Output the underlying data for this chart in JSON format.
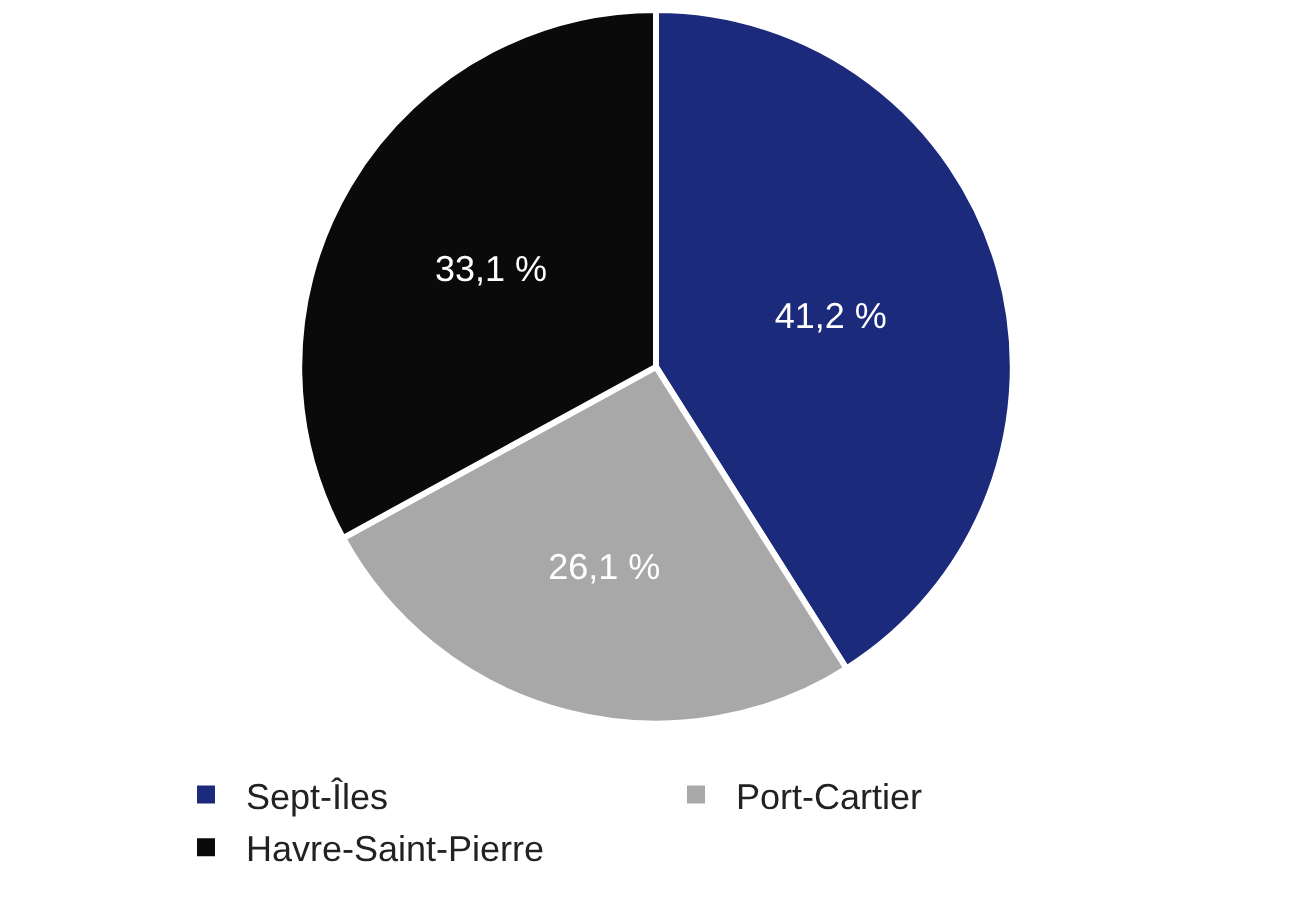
{
  "chart_data": {
    "type": "pie",
    "categories": [
      "Sept-Îles",
      "Port-Cartier",
      "Havre-Saint-Pierre"
    ],
    "values": [
      41.2,
      26.1,
      33.1
    ],
    "value_labels": [
      "41,2 %",
      "26,1 %",
      "33,1 %"
    ],
    "colors": [
      "#1b2a7a",
      "#a8a8a8",
      "#0a0a0a"
    ],
    "legend": "bottom"
  }
}
